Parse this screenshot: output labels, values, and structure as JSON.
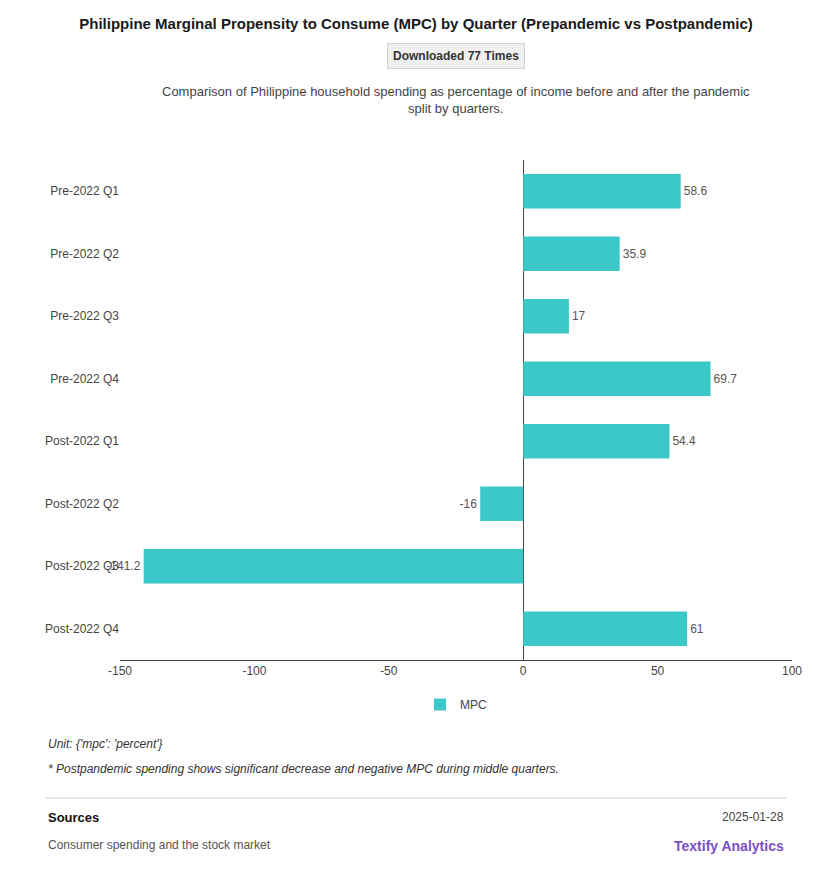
{
  "chart_data": {
    "type": "bar",
    "orientation": "horizontal",
    "title": "Philippine Marginal Propensity to Consume (MPC) by Quarter (Prepandemic vs Postpandemic)",
    "subtitle": "Comparison of Philippine household spending as percentage of income before and after the pandemic\nsplit by quarters.",
    "badge_text": "Downloaded 77 Times",
    "categories": [
      "Pre-2022 Q1",
      "Pre-2022 Q2",
      "Pre-2022 Q3",
      "Pre-2022 Q4",
      "Post-2022 Q1",
      "Post-2022 Q2",
      "Post-2022 Q3",
      "Post-2022 Q4"
    ],
    "series": [
      {
        "name": "MPC",
        "color": "#3CC8C8",
        "values": [
          58.6,
          35.9,
          17,
          69.7,
          54.4,
          -16,
          -141.2,
          61
        ]
      }
    ],
    "xlim": [
      -150,
      100
    ],
    "xticks": [
      -150,
      -100,
      -50,
      0,
      50,
      100
    ],
    "grid": false,
    "legend": "bottom",
    "data_labels": true,
    "unit_text": "Unit: {'mpc': 'percent'}",
    "note_text": "* Postpandemic spending shows significant decrease and negative MPC during middle quarters.",
    "sources_label": "Sources",
    "sources_text": "Consumer spending and the stock market",
    "date_text": "2025-01-28",
    "brand_text": "Textify Analytics"
  }
}
